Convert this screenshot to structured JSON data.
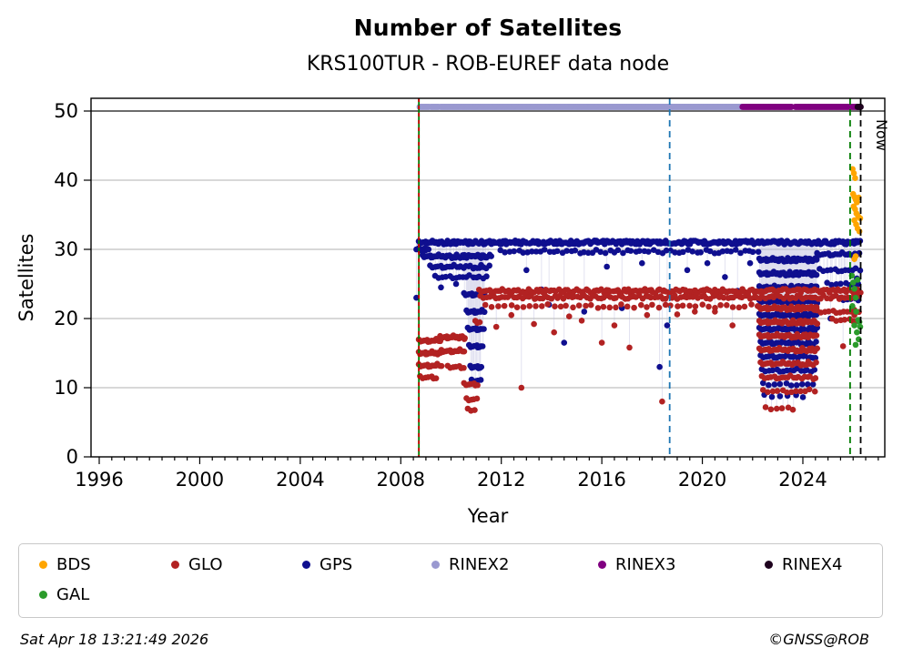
{
  "page": {
    "title": "Number of Satellites",
    "subtitle": "KRS100TUR - ROB-EUREF data node"
  },
  "footer": {
    "timestamp": "Sat Apr 18 13:21:49 2026",
    "credit": "©GNSS@ROB"
  },
  "legend": {
    "items": [
      {
        "label": "BDS",
        "color": "#ffa500"
      },
      {
        "label": "GLO",
        "color": "#b22222"
      },
      {
        "label": "GPS",
        "color": "#0f0f8f"
      },
      {
        "label": "RINEX2",
        "color": "#9a99d0"
      },
      {
        "label": "RINEX3",
        "color": "#800080"
      },
      {
        "label": "RINEX4",
        "color": "#1e021e"
      },
      {
        "label": "GAL",
        "color": "#2b9b2b"
      }
    ]
  },
  "chart_data": {
    "type": "scatter",
    "title": "Number of Satellites",
    "subtitle": "KRS100TUR - ROB-EUREF data node",
    "xlabel": "Year",
    "ylabel": "Satellites",
    "xlim": [
      1995.67,
      2027.26
    ],
    "ylim": [
      0,
      51.8
    ],
    "x_ticks": [
      1996,
      2000,
      2004,
      2008,
      2012,
      2016,
      2020,
      2024
    ],
    "x_minor_step": 0.5,
    "y_ticks": [
      0,
      10,
      20,
      30,
      40,
      50
    ],
    "grid": "horizontal",
    "grid_color": "#b0b0b0",
    "dark_hline_y": 50,
    "legend_position": "bottom",
    "vlines": [
      {
        "x": 2008.72,
        "style": "solid",
        "color": "#007d00",
        "overlay": {
          "style": "dashed",
          "color": "#cc0000"
        },
        "label": ""
      },
      {
        "x": 2018.7,
        "style": "dashed",
        "color": "#1f77b4",
        "label": ""
      },
      {
        "x": 2025.88,
        "style": "dashed",
        "color": "#007d00",
        "label": ""
      },
      {
        "x": 2026.3,
        "style": "dashed",
        "color": "#000000",
        "label": "Now"
      }
    ],
    "series": [
      {
        "name": "GPS",
        "color": "#0f0f8f",
        "marker_r": 3.3,
        "band": false,
        "point_stem": 31,
        "runs": [
          [
            2008.75,
            2026.28,
            31,
            340,
            0
          ],
          [
            2008.75,
            2009.1,
            30,
            10,
            0
          ],
          [
            2008.9,
            2011.6,
            29,
            45,
            0
          ],
          [
            2009.2,
            2011.5,
            27.5,
            26,
            31
          ],
          [
            2009.4,
            2011.4,
            26,
            16,
            31
          ],
          [
            2010.55,
            2011.35,
            23.5,
            14,
            31
          ],
          [
            2010.65,
            2011.3,
            21,
            12,
            31
          ],
          [
            2010.7,
            2011.3,
            18.5,
            10,
            31
          ],
          [
            2010.75,
            2011.25,
            16,
            9,
            31
          ],
          [
            2010.8,
            2011.2,
            13,
            8,
            31
          ],
          [
            2010.85,
            2011.15,
            11,
            5,
            31
          ],
          [
            2012.0,
            2022.2,
            29.7,
            60,
            0
          ],
          [
            2022.3,
            2024.55,
            28.5,
            45,
            31
          ],
          [
            2022.3,
            2024.55,
            26.5,
            42,
            31
          ],
          [
            2022.3,
            2024.55,
            24.5,
            40,
            31
          ],
          [
            2022.3,
            2024.55,
            22.5,
            38,
            31
          ],
          [
            2022.3,
            2024.55,
            20.5,
            34,
            31
          ],
          [
            2022.3,
            2024.55,
            18.5,
            30,
            31
          ],
          [
            2022.35,
            2024.5,
            16.5,
            26,
            31
          ],
          [
            2022.35,
            2024.5,
            14.5,
            22,
            31
          ],
          [
            2022.4,
            2024.45,
            12.5,
            16,
            31
          ],
          [
            2022.45,
            2024.4,
            10.5,
            10,
            31
          ],
          [
            2022.5,
            2024.0,
            8.8,
            6,
            31
          ],
          [
            2024.6,
            2026.25,
            29.3,
            18,
            0
          ],
          [
            2024.7,
            2026.25,
            27,
            12,
            31
          ],
          [
            2025.0,
            2026.2,
            25,
            8,
            31
          ],
          [
            2025.5,
            2026.2,
            22.8,
            6,
            31
          ]
        ],
        "points": [
          [
            2008.62,
            30
          ],
          [
            2008.62,
            23
          ],
          [
            2009.6,
            24.5
          ],
          [
            2010.2,
            25
          ],
          [
            2013.0,
            27
          ],
          [
            2013.6,
            24.2
          ],
          [
            2013.9,
            22
          ],
          [
            2014.5,
            16.5
          ],
          [
            2015.3,
            21
          ],
          [
            2016.2,
            27.5
          ],
          [
            2016.8,
            21.5
          ],
          [
            2017.6,
            28
          ],
          [
            2018.3,
            13
          ],
          [
            2018.6,
            19
          ],
          [
            2019.4,
            27
          ],
          [
            2020.2,
            28
          ],
          [
            2020.9,
            26
          ],
          [
            2021.4,
            24
          ],
          [
            2021.9,
            28
          ],
          [
            2025.1,
            20
          ],
          [
            2026.0,
            23
          ],
          [
            2026.15,
            25.8
          ]
        ]
      },
      {
        "name": "GLO",
        "color": "#b22222",
        "marker_r": 3.3,
        "band": false,
        "point_stem": 24,
        "runs": [
          [
            2008.75,
            2009.6,
            15,
            18,
            0
          ],
          [
            2008.75,
            2009.6,
            13.2,
            13,
            0
          ],
          [
            2008.75,
            2009.55,
            16.8,
            13,
            0
          ],
          [
            2008.8,
            2009.4,
            11.5,
            7,
            0
          ],
          [
            2009.6,
            2010.55,
            17.3,
            20,
            0
          ],
          [
            2009.65,
            2010.5,
            15.3,
            13,
            0
          ],
          [
            2009.9,
            2010.5,
            13,
            7,
            0
          ],
          [
            2010.55,
            2011.05,
            10.5,
            7,
            0
          ],
          [
            2010.65,
            2011.0,
            8.3,
            5,
            0
          ],
          [
            2010.7,
            2010.95,
            6.8,
            3,
            0
          ],
          [
            2011.0,
            2011.15,
            19.5,
            3,
            0
          ],
          [
            2011.15,
            2026.28,
            24,
            170,
            0
          ],
          [
            2011.2,
            2026.25,
            23.1,
            130,
            0
          ],
          [
            2011.4,
            2022.2,
            21.8,
            45,
            0
          ],
          [
            2022.3,
            2024.55,
            21.5,
            40,
            24
          ],
          [
            2022.3,
            2024.55,
            19.5,
            38,
            24
          ],
          [
            2022.3,
            2024.55,
            17.5,
            34,
            24
          ],
          [
            2022.3,
            2024.55,
            15.5,
            30,
            24
          ],
          [
            2022.35,
            2024.5,
            13.5,
            26,
            24
          ],
          [
            2022.4,
            2024.5,
            11.5,
            20,
            24
          ],
          [
            2022.45,
            2024.45,
            9.5,
            12,
            24
          ],
          [
            2022.55,
            2023.6,
            7,
            6,
            24
          ],
          [
            2024.6,
            2026.2,
            21,
            12,
            0
          ],
          [
            2025.2,
            2026.15,
            19.8,
            7,
            0
          ]
        ],
        "points": [
          [
            2011.8,
            18.8
          ],
          [
            2012.4,
            20.5
          ],
          [
            2012.8,
            10
          ],
          [
            2013.3,
            19.2
          ],
          [
            2014.1,
            18
          ],
          [
            2014.7,
            20.3
          ],
          [
            2015.2,
            19.7
          ],
          [
            2016.0,
            16.5
          ],
          [
            2016.5,
            19
          ],
          [
            2017.1,
            15.8
          ],
          [
            2017.8,
            20.5
          ],
          [
            2018.4,
            8
          ],
          [
            2019.0,
            20.6
          ],
          [
            2019.7,
            21
          ],
          [
            2020.5,
            21
          ],
          [
            2021.2,
            19
          ],
          [
            2025.6,
            16
          ],
          [
            2026.05,
            20.5
          ]
        ]
      },
      {
        "name": "GAL",
        "color": "#2b9b2b",
        "marker_r": 3.3,
        "band": false,
        "point_stem": 0,
        "runs": [],
        "points": [
          [
            2025.95,
            26.2
          ],
          [
            2026.0,
            25.2
          ],
          [
            2026.05,
            24.3
          ],
          [
            2026.1,
            23
          ],
          [
            2025.97,
            21.8
          ],
          [
            2026.12,
            21
          ],
          [
            2026.2,
            19.8
          ],
          [
            2026.05,
            19
          ],
          [
            2026.15,
            18
          ],
          [
            2026.22,
            17
          ],
          [
            2026.25,
            19.5
          ],
          [
            2026.18,
            25.6
          ],
          [
            2026.28,
            18.8
          ],
          [
            2026.1,
            16.2
          ]
        ]
      },
      {
        "name": "BDS",
        "color": "#ffa500",
        "marker_r": 3.3,
        "band": false,
        "point_stem": 0,
        "runs": [],
        "points": [
          [
            2025.98,
            41.6
          ],
          [
            2026.03,
            41
          ],
          [
            2026.08,
            40.3
          ],
          [
            2026.0,
            38
          ],
          [
            2026.05,
            37.6
          ],
          [
            2026.1,
            37.2
          ],
          [
            2026.15,
            36.8
          ],
          [
            2026.02,
            36.2
          ],
          [
            2026.08,
            35.8
          ],
          [
            2026.13,
            35.2
          ],
          [
            2026.2,
            34.8
          ],
          [
            2026.05,
            34.2
          ],
          [
            2026.12,
            33.6
          ],
          [
            2026.18,
            33
          ],
          [
            2026.25,
            32.6
          ],
          [
            2026.1,
            29
          ],
          [
            2026.22,
            37.5
          ],
          [
            2026.28,
            34.5
          ],
          [
            2026.05,
            28.6
          ]
        ]
      },
      {
        "name": "RINEX2",
        "color": "#9a99d0",
        "marker_r": 3.4,
        "band": true,
        "point_stem": 0,
        "runs": [
          [
            2008.75,
            2009.12,
            50.6,
            9,
            0
          ],
          [
            2009.2,
            2009.5,
            50.6,
            8,
            0
          ],
          [
            2009.58,
            2021.55,
            50.6,
            300,
            0
          ]
        ],
        "points": []
      },
      {
        "name": "RINEX3",
        "color": "#800080",
        "marker_r": 3.4,
        "band": true,
        "point_stem": 0,
        "runs": [
          [
            2021.6,
            2023.55,
            50.6,
            46,
            0
          ],
          [
            2023.7,
            2026.28,
            50.6,
            60,
            0
          ]
        ],
        "points": []
      },
      {
        "name": "RINEX4",
        "color": "#1e021e",
        "marker_r": 3.4,
        "band": true,
        "point_stem": 0,
        "runs": [
          [
            2026.18,
            2026.3,
            50.6,
            3,
            0
          ]
        ],
        "points": []
      }
    ]
  }
}
